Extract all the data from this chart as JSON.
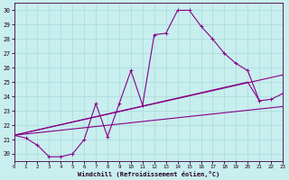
{
  "xlabel": "Windchill (Refroidissement éolien,°C)",
  "bg_color": "#c8eeee",
  "grid_color": "#b0dddd",
  "line_color": "#880088",
  "xlim": [
    0,
    23
  ],
  "ylim": [
    19.5,
    30.5
  ],
  "yticks": [
    20,
    21,
    22,
    23,
    24,
    25,
    26,
    27,
    28,
    29,
    30
  ],
  "xticks": [
    0,
    1,
    2,
    3,
    4,
    5,
    6,
    7,
    8,
    9,
    10,
    11,
    12,
    13,
    14,
    15,
    16,
    17,
    18,
    19,
    20,
    21,
    22,
    23
  ],
  "curve1_x": [
    0,
    1,
    2,
    3,
    4,
    5,
    6,
    7,
    8,
    9,
    10,
    11,
    12,
    13,
    14,
    15,
    16,
    17,
    18,
    19,
    20,
    21,
    22,
    23
  ],
  "curve1_y": [
    21.3,
    21.1,
    20.6,
    19.8,
    19.8,
    20.0,
    21.0,
    23.5,
    21.2,
    23.5,
    25.8,
    23.4,
    28.3,
    28.4,
    30.0,
    30.0,
    28.9,
    28.0,
    27.0,
    26.3,
    25.8,
    23.7,
    23.8,
    24.2
  ],
  "curve2_x": [
    0,
    23
  ],
  "curve2_y": [
    21.3,
    23.3
  ],
  "curve3_x": [
    0,
    23
  ],
  "curve3_y": [
    21.3,
    25.5
  ],
  "curve4_x": [
    0,
    20,
    21
  ],
  "curve4_y": [
    21.3,
    25.0,
    23.7
  ]
}
